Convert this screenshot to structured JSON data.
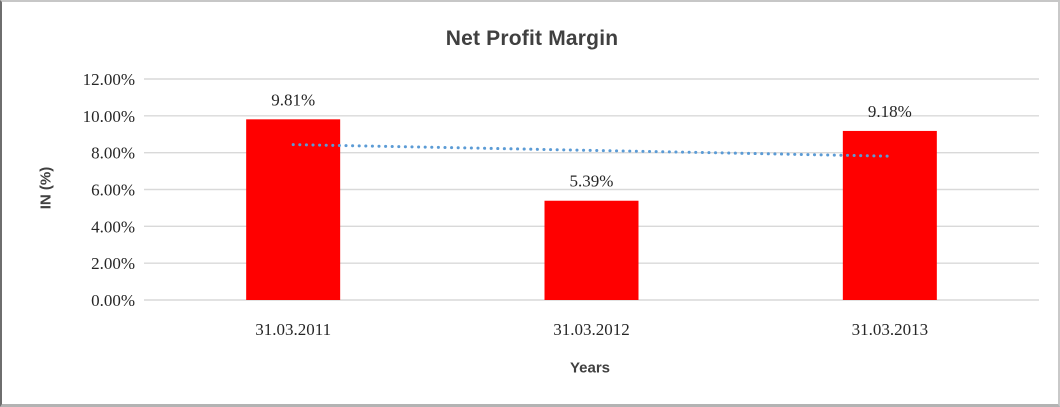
{
  "chart_data": {
    "type": "bar",
    "title": "Net Profit Margin",
    "xlabel": "Years",
    "ylabel": "IN (%)",
    "categories": [
      "31.03.2011",
      "31.03.2012",
      "31.03.2013"
    ],
    "values": [
      9.81,
      5.39,
      9.18
    ],
    "data_labels": [
      "9.81%",
      "5.39%",
      "9.18%"
    ],
    "ylim": [
      0,
      12
    ],
    "ytick_step": 2,
    "ytick_labels": [
      "0.00%",
      "2.00%",
      "4.00%",
      "6.00%",
      "8.00%",
      "10.00%",
      "12.00%"
    ],
    "grid": true,
    "legend": "none",
    "bar_color": "#FF0000",
    "gridline_color": "#D9D9D9",
    "title_color": "#404040",
    "axis_title_color": "#404040",
    "tick_label_color": "#262626",
    "trendline": {
      "type": "linear",
      "style": "dotted",
      "color": "#5B9BD5",
      "start_value": 8.44,
      "end_value": 7.81
    }
  }
}
